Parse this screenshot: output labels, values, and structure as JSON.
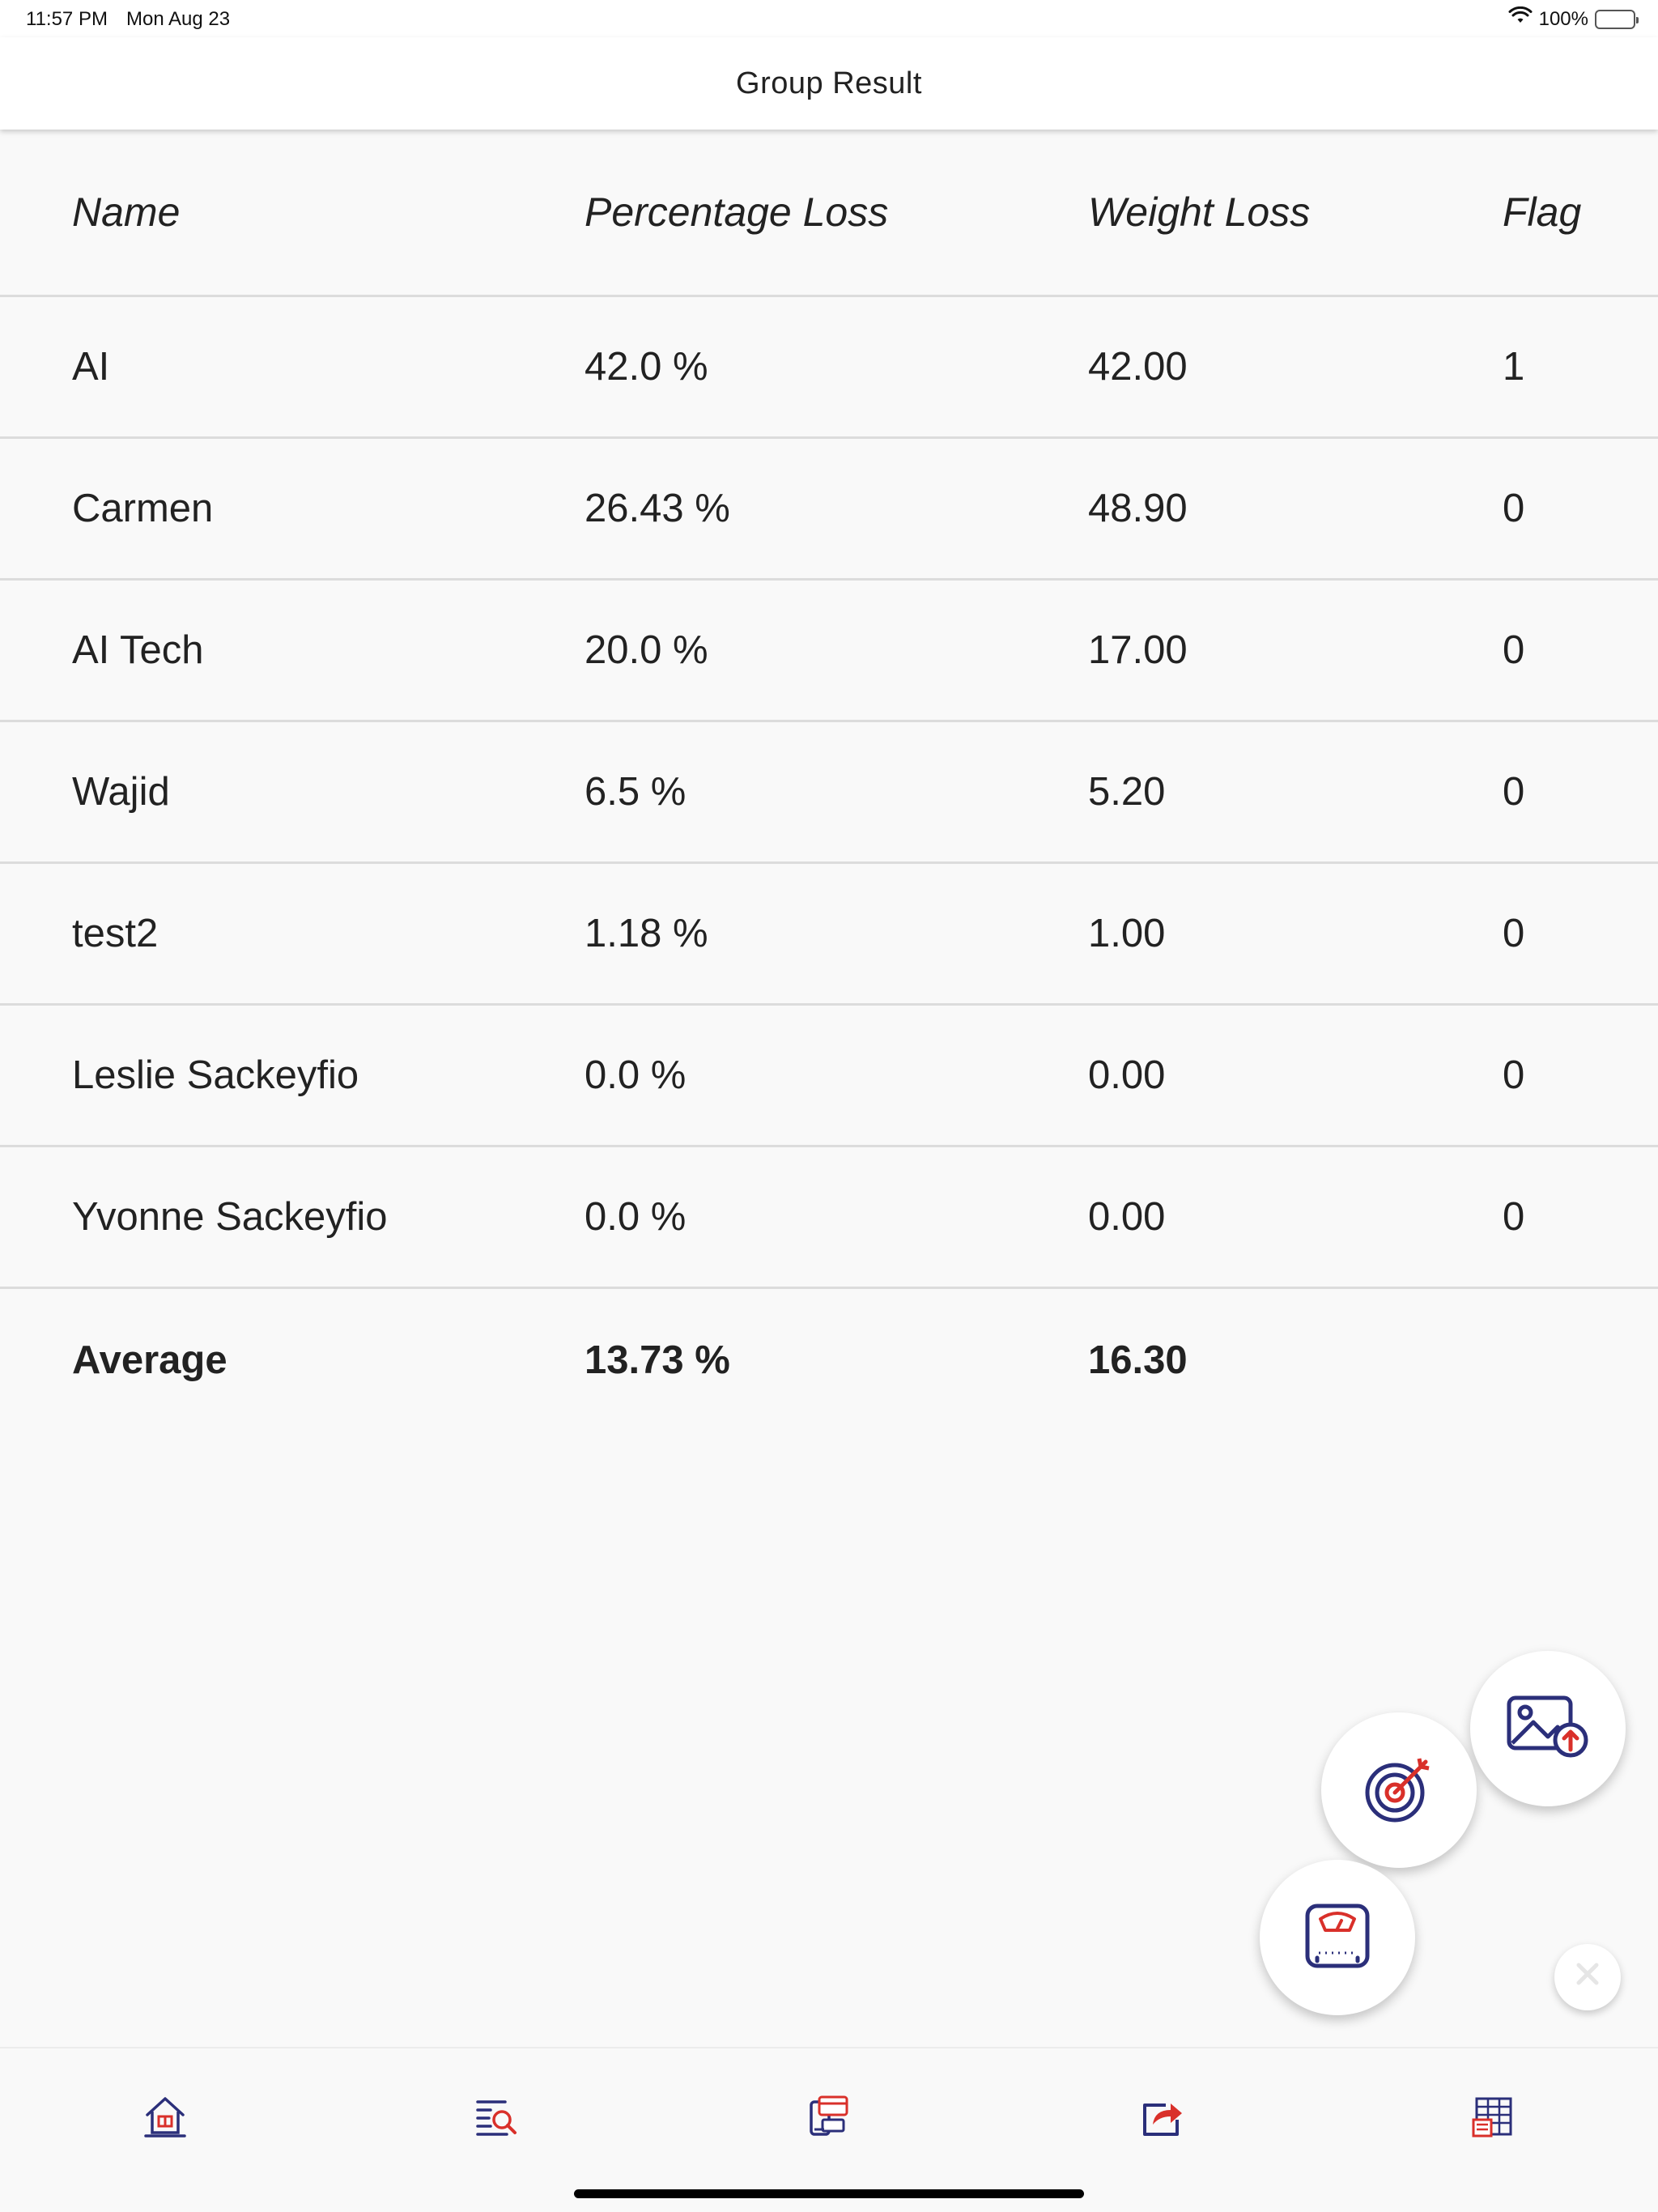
{
  "status_bar": {
    "time": "11:57 PM",
    "date": "Mon Aug 23",
    "battery_text": "100%"
  },
  "nav": {
    "title": "Group Result"
  },
  "table": {
    "headers": [
      "Name",
      "Percentage Loss",
      "Weight Loss",
      "Flag"
    ],
    "rows": [
      {
        "name": "AI",
        "percentage": "42.0 %",
        "weight": "42.00",
        "flag": "1"
      },
      {
        "name": "Carmen",
        "percentage": "26.43 %",
        "weight": "48.90",
        "flag": "0"
      },
      {
        "name": "AI Tech",
        "percentage": "20.0 %",
        "weight": "17.00",
        "flag": "0"
      },
      {
        "name": "Wajid",
        "percentage": "6.5 %",
        "weight": "5.20",
        "flag": "0"
      },
      {
        "name": "test2",
        "percentage": "1.18 %",
        "weight": "1.00",
        "flag": "0"
      },
      {
        "name": "Leslie Sackeyfio",
        "percentage": "0.0 %",
        "weight": "0.00",
        "flag": "0"
      },
      {
        "name": "Yvonne Sackeyfio",
        "percentage": "0.0 %",
        "weight": "0.00",
        "flag": "0"
      }
    ],
    "average": {
      "label": "Average",
      "percentage": "13.73 %",
      "weight": "16.30"
    }
  },
  "fab": {
    "items": [
      "image-upload-icon",
      "target-icon",
      "weight-scale-icon"
    ],
    "close_icon": "close-icon"
  },
  "tab_bar": {
    "items": [
      "home-icon",
      "search-list-icon",
      "payment-icon",
      "share-icon",
      "spreadsheet-icon"
    ]
  },
  "colors": {
    "navy": "#2b2f7a",
    "red": "#d9302a",
    "background": "#f9f9f9",
    "divider": "#dcdcdc"
  }
}
